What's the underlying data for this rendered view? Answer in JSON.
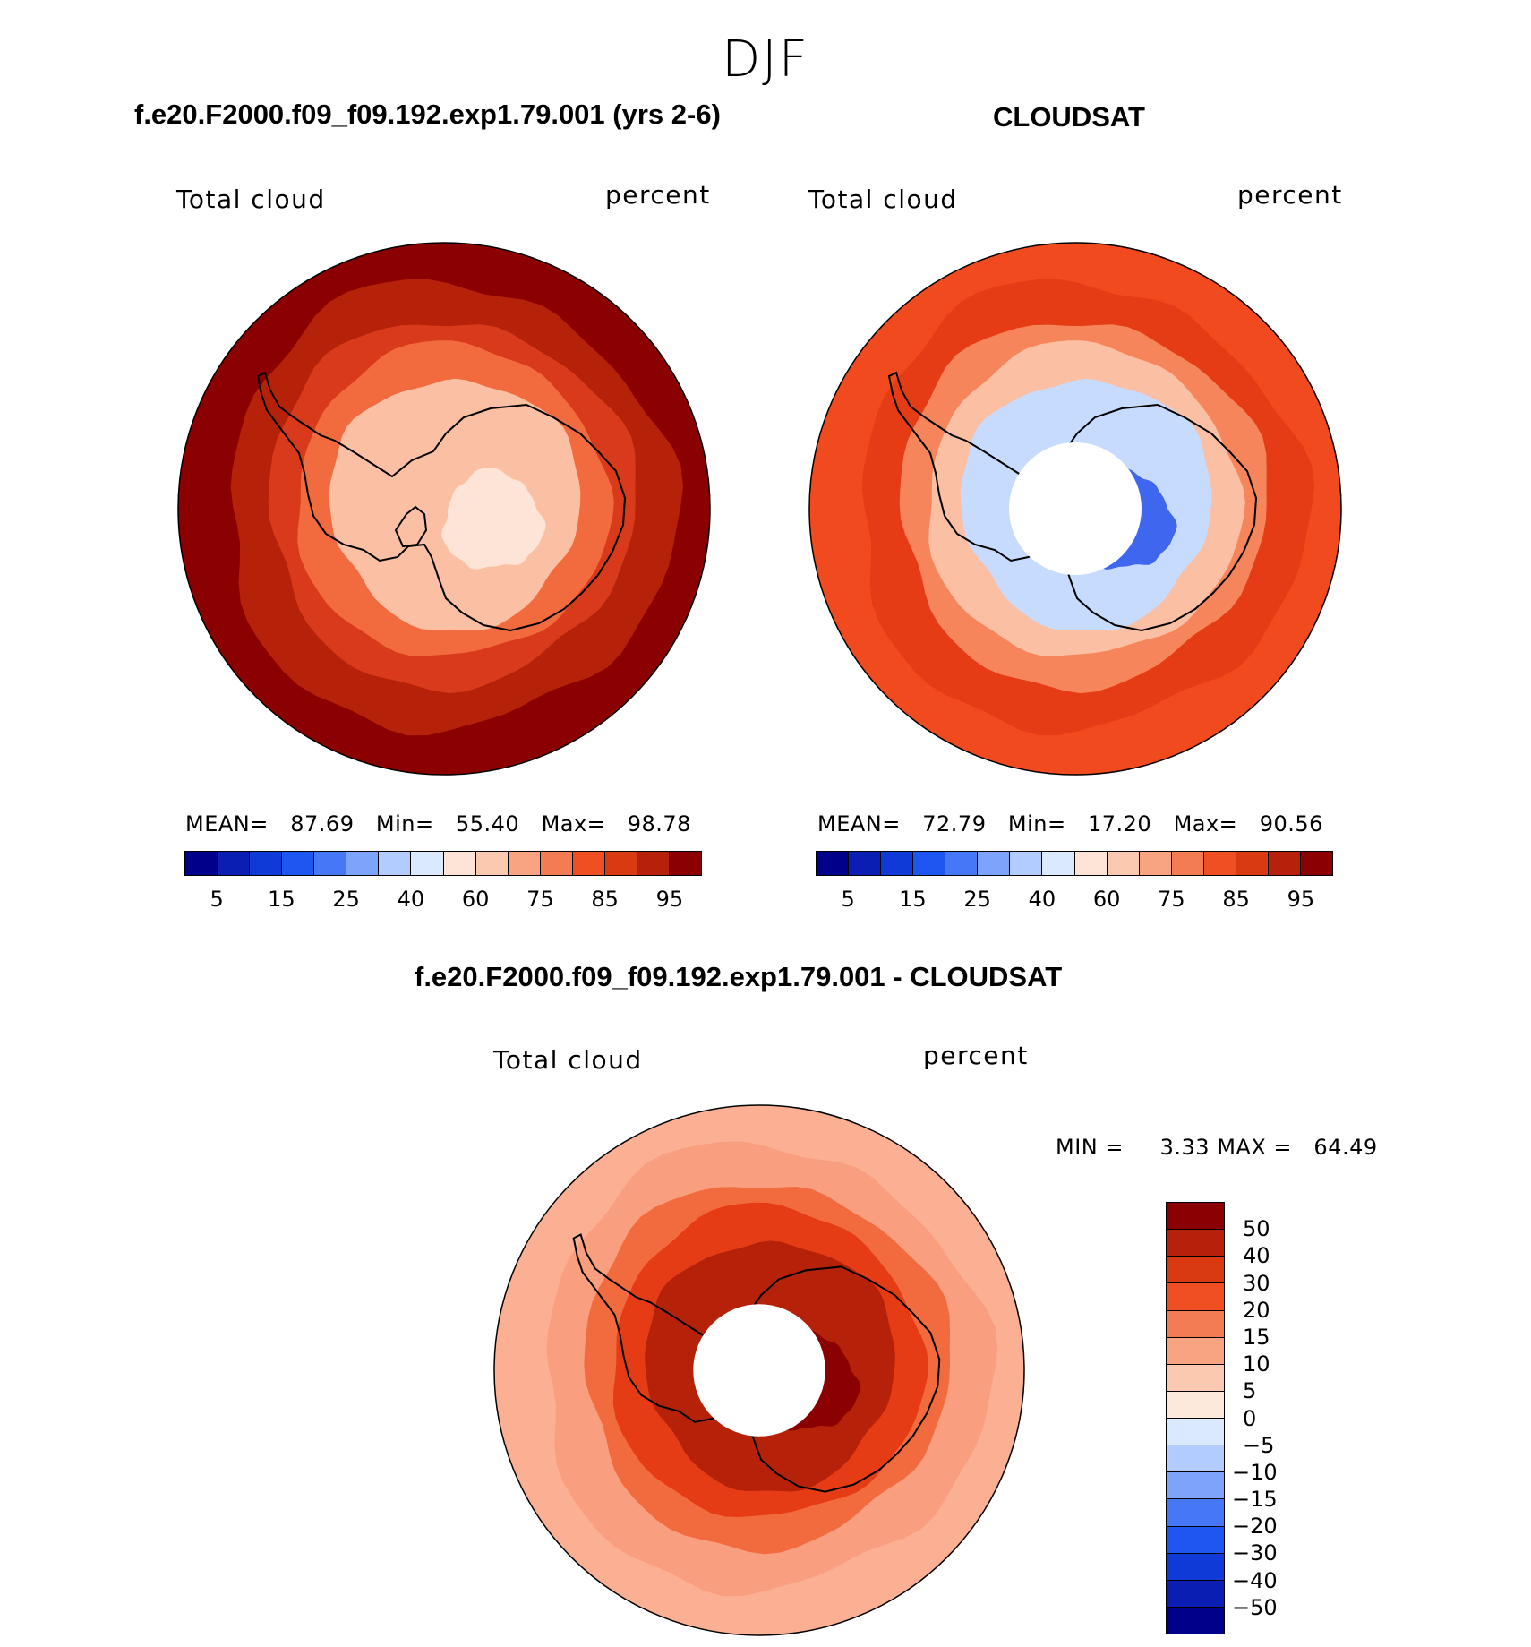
{
  "season": "DJF",
  "panels": [
    {
      "title": "f.e20.F2000.f09_f09.192.exp1.79.001 (yrs 2-6)",
      "variable": "Total cloud",
      "units": "percent",
      "stats": {
        "mean_label": "MEAN=",
        "mean": "87.69",
        "min_label": "Min=",
        "min": "55.40",
        "max_label": "Max=",
        "max": "98.78"
      },
      "field": {
        "outer": "#8b0000",
        "band2": "#b52209",
        "band3": "#d93a1c",
        "coast": "#f26b3e",
        "interior": "#fbbfa3",
        "interior_hi": "#fde4d6",
        "hole": false
      }
    },
    {
      "title": "CLOUDSAT",
      "variable": "Total cloud",
      "units": "percent",
      "stats": {
        "mean_label": "MEAN=",
        "mean": "72.79",
        "min_label": "Min=",
        "min": "17.20",
        "max_label": "Max=",
        "max": "90.56"
      },
      "field": {
        "outer": "#f24a1f",
        "band2": "#e63c16",
        "band3": "#f7855c",
        "coast": "#fbbfa3",
        "interior": "#c7dbff",
        "interior_hi": "#3f66ef",
        "hole": true
      }
    },
    {
      "title": "f.e20.F2000.f09_f09.192.exp1.79.001 - CLOUDSAT",
      "variable": "Total cloud",
      "units": "percent",
      "stats": {
        "min_label": "MIN =",
        "min": "3.33",
        "max_label": "MAX =",
        "max": "64.49"
      },
      "field": {
        "outer": "#fbb093",
        "band2": "#f99e7e",
        "band3": "#f26b3e",
        "coast": "#e63c16",
        "interior": "#b52209",
        "interior_hi": "#8b0000",
        "hole": true
      }
    }
  ],
  "colorbar_top": {
    "colors": [
      "#00008b",
      "#0a1eb4",
      "#0f3ad8",
      "#1e56f2",
      "#4677f7",
      "#7ea3fb",
      "#b3ccff",
      "#dbe9ff",
      "#fde4d6",
      "#fbc9b0",
      "#f8a481",
      "#f47c52",
      "#f04f24",
      "#da3a12",
      "#b7210b",
      "#8b0000"
    ],
    "labels": [
      "5",
      "15",
      "25",
      "40",
      "60",
      "75",
      "85",
      "95"
    ]
  },
  "colorbar_diff": {
    "colors": [
      "#8b0000",
      "#b7210b",
      "#da3a12",
      "#f04f24",
      "#f47c52",
      "#f8a481",
      "#fbc9b0",
      "#fde8dc",
      "#dbe9ff",
      "#b3ccff",
      "#7ea3fb",
      "#4677f7",
      "#1e56f2",
      "#0f3ad8",
      "#0a1eb4",
      "#00008b"
    ],
    "labels": [
      "50",
      "40",
      "30",
      "20",
      "15",
      "10",
      "5",
      "0",
      "−5",
      "−10",
      "−15",
      "−20",
      "−30",
      "−40",
      "−50"
    ]
  },
  "icons": {
    "antarctica_outline": "coastline-icon"
  }
}
